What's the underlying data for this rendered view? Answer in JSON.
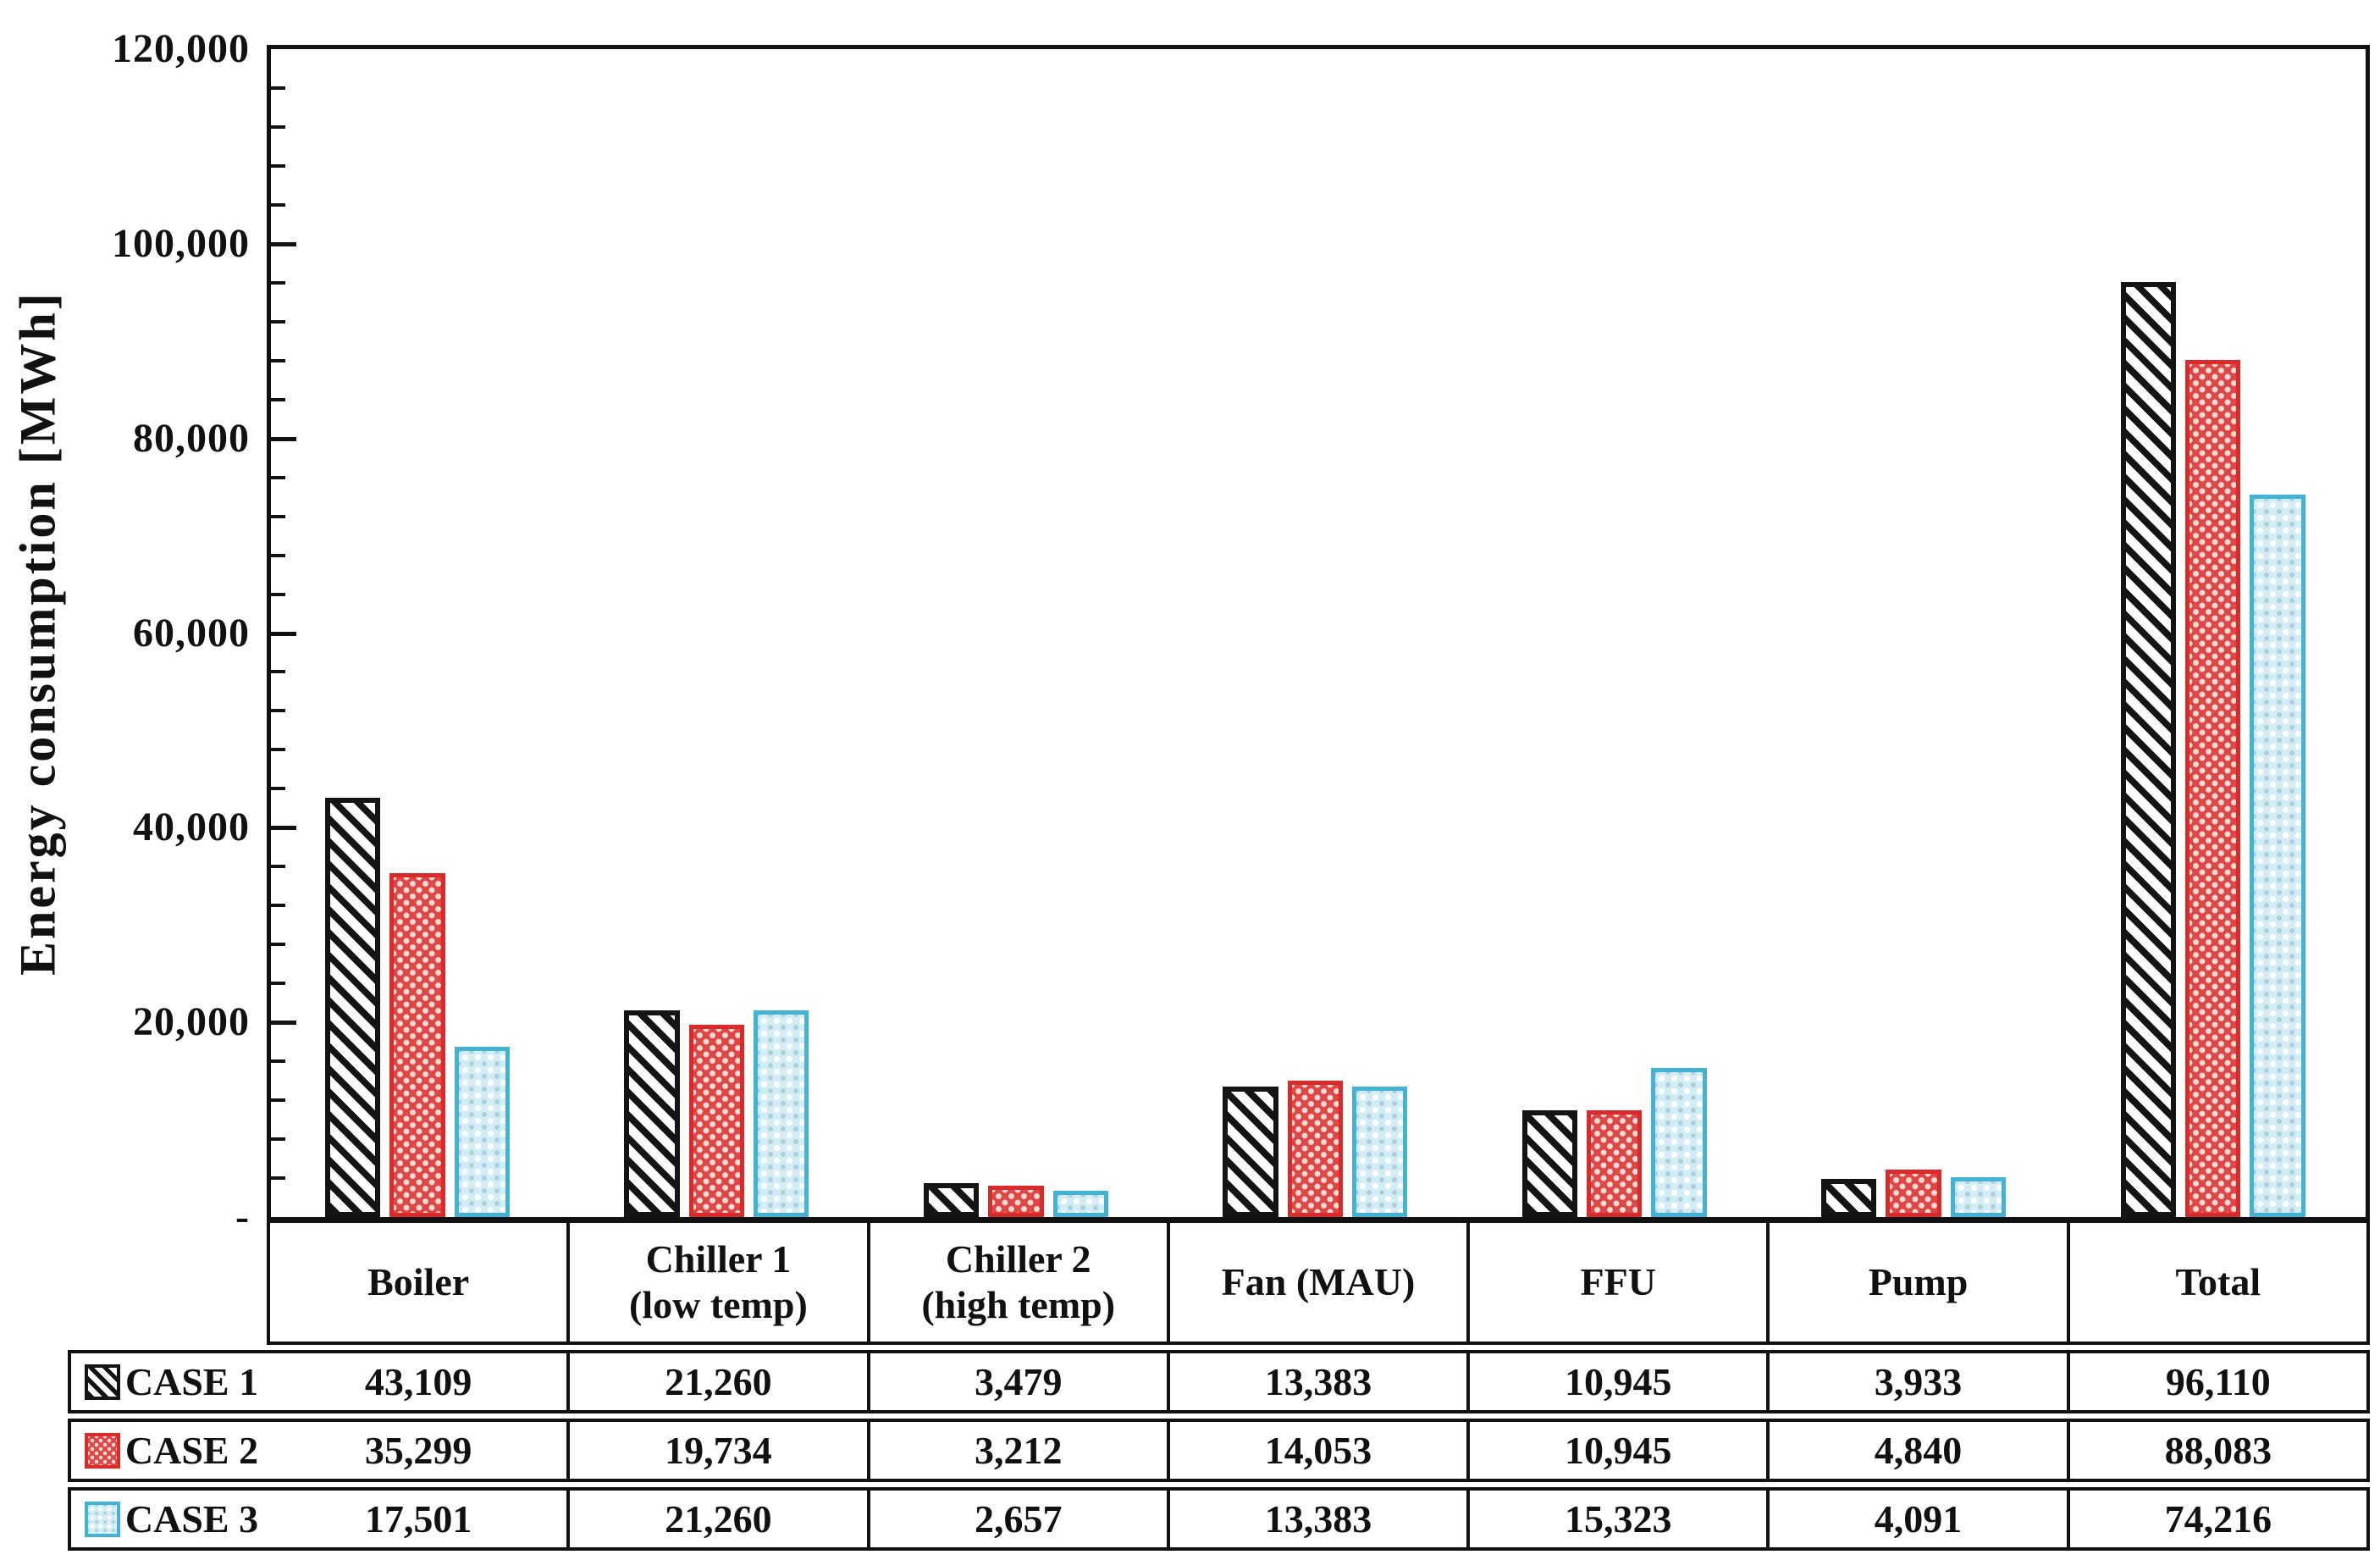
{
  "chart_data": {
    "type": "bar",
    "title": "",
    "ylabel": "Energy consumption [MWh]",
    "ylim": [
      0,
      120000
    ],
    "ymajor_step": 20000,
    "yminor_step": 4000,
    "ytick_labels": [
      "-",
      "20,000",
      "40,000",
      "60,000",
      "80,000",
      "100,000",
      "120,000"
    ],
    "grid": false,
    "legend_position": "left column of data table below chart",
    "categories": [
      "Boiler",
      "Chiller 1\n(low temp)",
      "Chiller 2\n(high temp)",
      "Fan (MAU)",
      "FFU",
      "Pump",
      "Total"
    ],
    "series": [
      {
        "name": "CASE 1",
        "swatch": "black-diagonal-hatch",
        "color": "#141414",
        "values": [
          43109,
          21260,
          3479,
          13383,
          10945,
          3933,
          96110
        ]
      },
      {
        "name": "CASE 2",
        "swatch": "red-dot-checker",
        "color": "#da2a2a",
        "values": [
          35299,
          19734,
          3212,
          14053,
          10945,
          4840,
          88083
        ]
      },
      {
        "name": "CASE 3",
        "swatch": "cyan-dot-checker",
        "color": "#42b3d5",
        "values": [
          17501,
          21260,
          2657,
          13383,
          15323,
          4091,
          74216
        ]
      }
    ]
  }
}
